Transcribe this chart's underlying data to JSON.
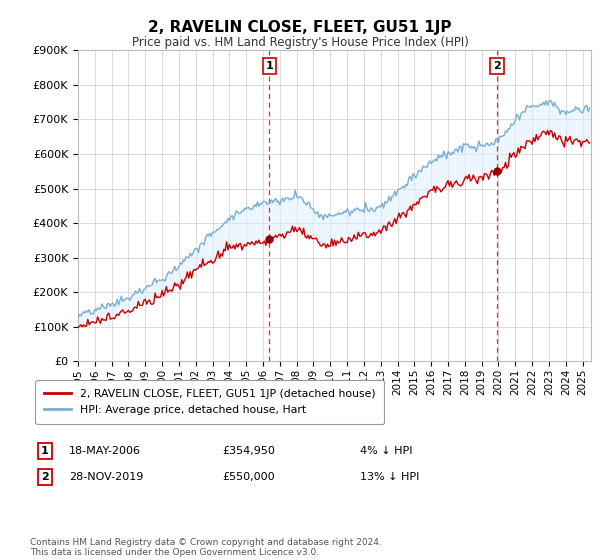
{
  "title": "2, RAVELIN CLOSE, FLEET, GU51 1JP",
  "subtitle": "Price paid vs. HM Land Registry's House Price Index (HPI)",
  "ylabel_ticks": [
    "£0",
    "£100K",
    "£200K",
    "£300K",
    "£400K",
    "£500K",
    "£600K",
    "£700K",
    "£800K",
    "£900K"
  ],
  "ylim": [
    0,
    900000
  ],
  "xlim_start": 1995.0,
  "xlim_end": 2025.5,
  "legend_line1": "2, RAVELIN CLOSE, FLEET, GU51 1JP (detached house)",
  "legend_line2": "HPI: Average price, detached house, Hart",
  "sale1_label": "1",
  "sale1_date": "18-MAY-2006",
  "sale1_price": "£354,950",
  "sale1_note": "4% ↓ HPI",
  "sale1_x": 2006.37,
  "sale1_y": 354950,
  "sale2_label": "2",
  "sale2_date": "28-NOV-2019",
  "sale2_price": "£550,000",
  "sale2_note": "13% ↓ HPI",
  "sale2_x": 2019.91,
  "sale2_y": 550000,
  "footer": "Contains HM Land Registry data © Crown copyright and database right 2024.\nThis data is licensed under the Open Government Licence v3.0.",
  "line_color_red": "#cc0000",
  "line_color_blue": "#7aafd4",
  "fill_color_blue": "#ddeeff",
  "marker_color_red": "#990000",
  "vline_color": "#cc0000",
  "background_color": "#ffffff",
  "grid_color": "#cccccc"
}
